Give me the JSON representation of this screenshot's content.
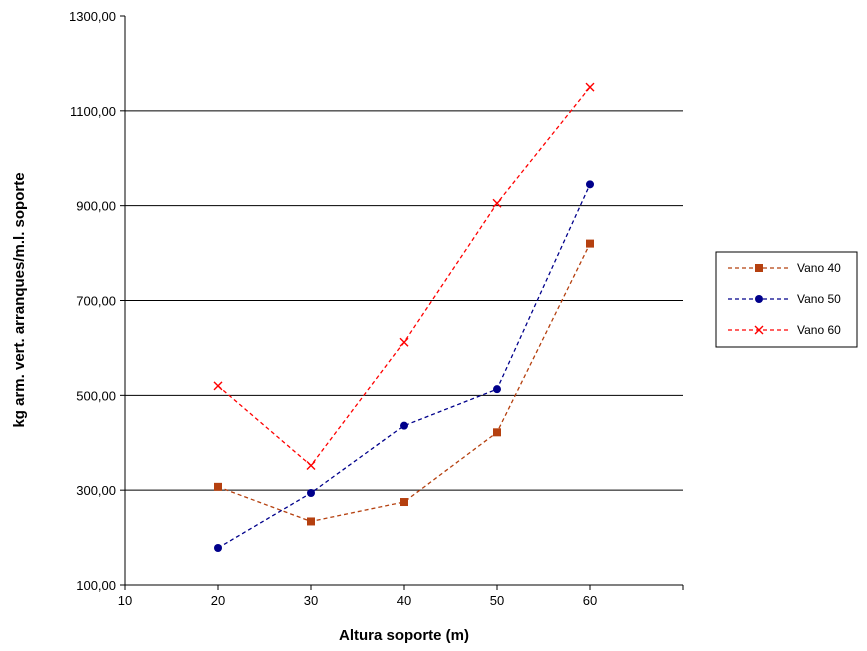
{
  "chart_data": {
    "type": "line",
    "xlabel": "Altura soporte (m)",
    "ylabel": "kg arm. vert. arranques/m.l. soporte",
    "x": [
      20,
      30,
      40,
      50,
      60
    ],
    "xlim": [
      10,
      70
    ],
    "ylim": [
      100,
      1300
    ],
    "xticks": [
      10,
      20,
      30,
      40,
      50,
      60
    ],
    "xtick_labels": [
      "10",
      "20",
      "30",
      "40",
      "50",
      "60"
    ],
    "yticks": [
      100,
      300,
      500,
      700,
      900,
      1100,
      1300
    ],
    "ytick_labels": [
      "100,00",
      "300,00",
      "500,00",
      "700,00",
      "900,00",
      "1100,00",
      "1300,00"
    ],
    "grid": "horizontal major gridlines",
    "legend_position": "right",
    "series": [
      {
        "name": "Vano 40",
        "values": [
          307,
          234,
          275,
          422,
          820
        ],
        "color": "#b5400f",
        "marker": "square"
      },
      {
        "name": "Vano 50",
        "values": [
          178,
          294,
          436,
          513,
          945
        ],
        "color": "#00008b",
        "marker": "circle"
      },
      {
        "name": "Vano 60",
        "values": [
          520,
          352,
          612,
          905,
          1150
        ],
        "color": "#ff0000",
        "marker": "x"
      }
    ]
  }
}
